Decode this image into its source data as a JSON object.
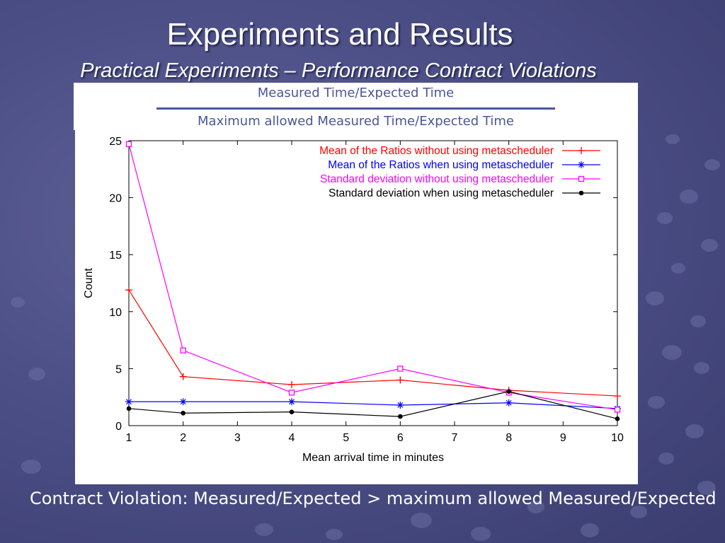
{
  "slide": {
    "title": "Experiments and Results",
    "subtitle": "Practical Experiments – Performance Contract Violations",
    "header_line1": "Measured Time/Expected Time",
    "header_line2": "Maximum allowed Measured Time/Expected Time",
    "bottom_text": "Contract Violation: Measured/Expected > maximum allowed Measured/Expected"
  },
  "chart_data": {
    "type": "line",
    "xlabel": "Mean arrival time in minutes",
    "ylabel": "Count",
    "xlim": [
      1,
      10
    ],
    "ylim": [
      0,
      25
    ],
    "xticks": [
      1,
      2,
      3,
      4,
      5,
      6,
      7,
      8,
      9,
      10
    ],
    "yticks": [
      0,
      5,
      10,
      15,
      20,
      25
    ],
    "legend_position": "top-right",
    "grid": false,
    "series": [
      {
        "name": "Mean of the Ratios without using metascheduler",
        "color": "#ff0000",
        "marker": "plus",
        "x": [
          1,
          2,
          4,
          6,
          8,
          10
        ],
        "y": [
          11.9,
          4.3,
          3.6,
          4.0,
          3.1,
          2.6
        ]
      },
      {
        "name": "Mean of the Ratios when using metascheduler",
        "color": "#0000ff",
        "marker": "star",
        "x": [
          1,
          2,
          4,
          6,
          8,
          10
        ],
        "y": [
          2.1,
          2.1,
          2.1,
          1.8,
          2.0,
          1.5
        ]
      },
      {
        "name": "Standard deviation without using metascheduler",
        "color": "#ff00ff",
        "marker": "square",
        "x": [
          1,
          2,
          4,
          6,
          8,
          10
        ],
        "y": [
          24.7,
          6.6,
          2.9,
          5.0,
          2.9,
          1.4
        ]
      },
      {
        "name": "Standard deviation when using metascheduler",
        "color": "#000000",
        "marker": "dot",
        "x": [
          1,
          2,
          4,
          6,
          8,
          10
        ],
        "y": [
          1.5,
          1.1,
          1.2,
          0.8,
          3.0,
          0.6
        ]
      }
    ]
  }
}
